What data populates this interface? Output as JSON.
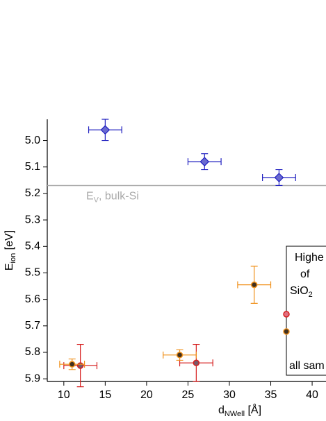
{
  "chart_data": {
    "type": "scatter",
    "x_label": {
      "main": "d",
      "sub": "NWell",
      "unit": " [Å]"
    },
    "y_label": {
      "main": "E",
      "sub": "ion",
      "unit": " [eV]"
    },
    "xlim": [
      8,
      41.8
    ],
    "xticks": [
      10,
      15,
      20,
      25,
      30,
      35,
      40
    ],
    "ylim": [
      4.92,
      5.91
    ],
    "yticks": [
      {
        "value": 5.0,
        "label": "5.0"
      },
      5.1,
      5.2,
      5.3,
      5.4,
      5.5,
      5.6,
      5.7,
      5.8,
      5.9
    ],
    "y_inverted": true,
    "reference_line": {
      "value": 5.17,
      "color": "#aaaaaa",
      "label": {
        "main": "E",
        "sub": "V",
        "rest": ", bulk-Si"
      }
    },
    "series": [
      {
        "marker": "diamond",
        "color": "#2020c0",
        "fill": "#6a6ad0",
        "x": [
          15,
          27,
          36
        ],
        "values": [
          4.96,
          5.08,
          5.14
        ],
        "xerr": [
          2,
          2,
          2
        ],
        "yerr": [
          0.04,
          0.03,
          0.03
        ]
      },
      {
        "marker": "circle",
        "color": "#d62020",
        "fill": "#7a5a6a",
        "x": [
          12,
          26
        ],
        "values": [
          5.85,
          5.84
        ],
        "xerr": [
          2,
          2
        ],
        "yerr": [
          0.08,
          0.07
        ]
      },
      {
        "marker": "circle",
        "color": "#f0901a",
        "fill": "#403020",
        "x": [
          11,
          24,
          33
        ],
        "values": [
          5.845,
          5.81,
          5.545
        ],
        "xerr": [
          1.5,
          2,
          2
        ],
        "yerr": [
          0.02,
          0.02,
          0.07
        ]
      }
    ],
    "legend": {
      "lines": [
        "Highe",
        "of"
      ],
      "sio": {
        "main": "SiO",
        "sub": "2"
      },
      "footer": "all sam",
      "marker_fills": [
        "#e07080",
        "#403020"
      ]
    }
  }
}
